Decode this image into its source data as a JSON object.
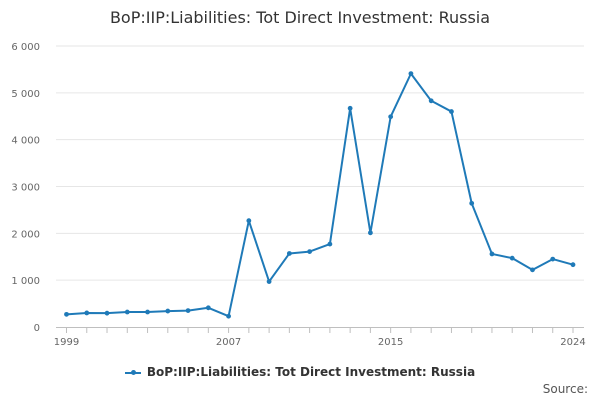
{
  "chart_data": {
    "type": "line",
    "title": "BoP:IIP:Liabilities: Tot Direct Investment: Russia",
    "xlabel": "",
    "ylabel": "",
    "x": [
      1999,
      2000,
      2001,
      2002,
      2003,
      2004,
      2005,
      2006,
      2007,
      2008,
      2009,
      2010,
      2011,
      2012,
      2013,
      2014,
      2015,
      2016,
      2017,
      2018,
      2019,
      2020,
      2021,
      2022,
      2023,
      2024
    ],
    "series": [
      {
        "name": "BoP:IIP:Liabilities: Tot Direct Investment: Russia",
        "color": "#1f7ab8",
        "values": [
          270,
          300,
          295,
          320,
          320,
          340,
          350,
          410,
          230,
          2270,
          970,
          1570,
          1610,
          1770,
          4670,
          2010,
          4490,
          5410,
          4830,
          4600,
          2640,
          1560,
          1470,
          1220,
          1450,
          1330
        ]
      }
    ],
    "ylim": [
      0,
      6000
    ],
    "yticks": [
      0,
      1000,
      2000,
      3000,
      4000,
      5000,
      6000
    ],
    "ytick_labels": [
      "0",
      "1 000",
      "2 000",
      "3 000",
      "4 000",
      "5 000",
      "6 000"
    ],
    "xticks": [
      1999,
      2007,
      2015,
      2024
    ],
    "xtick_labels": [
      "1999",
      "2007",
      "2015",
      "2024"
    ],
    "grid": true,
    "legend_position": "bottom"
  },
  "source_label": "Source:"
}
